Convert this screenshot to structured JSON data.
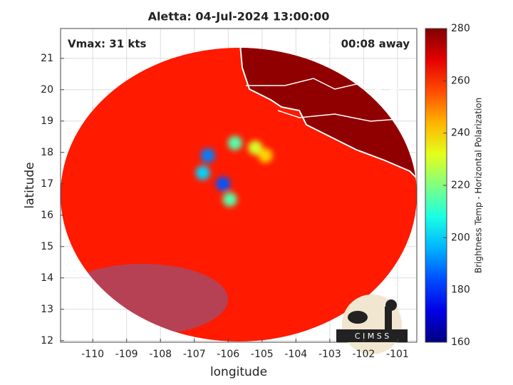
{
  "chart_data": {
    "type": "swath",
    "title": "Aletta: 04-Jul-2024 13:00:00",
    "vmax_label": "Vmax: 31 kts",
    "time_label": "00:08 away",
    "xlabel": "longitude",
    "ylabel": "latitude",
    "colorbar_label": "Brightness Temp - Horizontal Polarization",
    "logo_text": "C I M S S",
    "xlim": [
      -110.95,
      -100.43
    ],
    "ylim": [
      11.95,
      21.95
    ],
    "xticks": [
      -110,
      -109,
      -108,
      -107,
      -106,
      -105,
      -104,
      -103,
      -102,
      -101
    ],
    "yticks": [
      12,
      13,
      14,
      15,
      16,
      17,
      18,
      19,
      20,
      21
    ],
    "clim": [
      160,
      280
    ],
    "cticks": [
      160,
      180,
      200,
      220,
      240,
      260,
      280
    ],
    "background_tb": 262,
    "land_tb": 278,
    "grid": true,
    "cells": [
      {
        "lon": -106.6,
        "lat": 17.9,
        "tb": 190
      },
      {
        "lon": -106.75,
        "lat": 17.35,
        "tb": 200
      },
      {
        "lon": -106.15,
        "lat": 17.0,
        "tb": 185
      },
      {
        "lon": -105.95,
        "lat": 16.5,
        "tb": 215
      },
      {
        "lon": -105.8,
        "lat": 18.3,
        "tb": 215
      },
      {
        "lon": -105.2,
        "lat": 18.15,
        "tb": 230
      },
      {
        "lon": -104.9,
        "lat": 17.9,
        "tb": 240
      }
    ]
  }
}
